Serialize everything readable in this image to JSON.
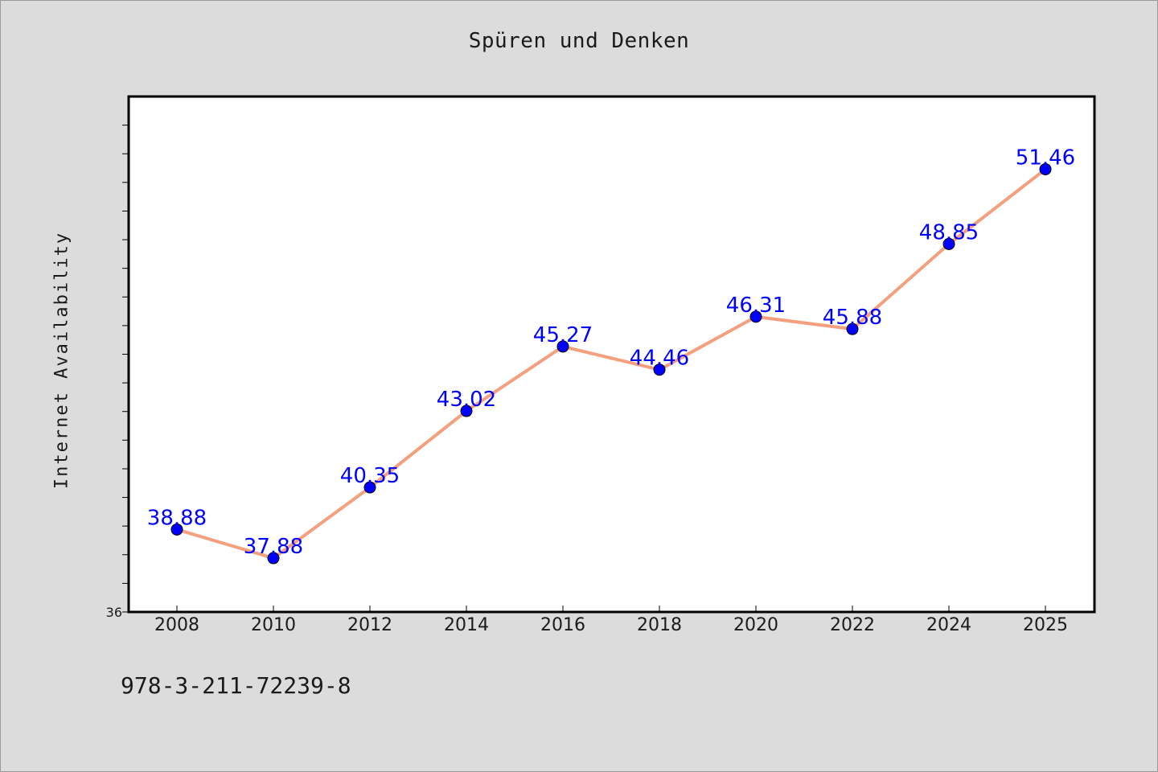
{
  "chart_data": {
    "type": "line",
    "title": "Spüren und Denken",
    "xlabel": "",
    "ylabel": "Internet Availability",
    "x": [
      "2008",
      "2010",
      "2012",
      "2014",
      "2016",
      "2018",
      "2020",
      "2022",
      "2024",
      "2025"
    ],
    "series": [
      {
        "values": [
          38.88,
          37.88,
          40.35,
          43.02,
          45.27,
          44.46,
          46.31,
          45.88,
          48.85,
          51.46
        ],
        "data_labels": [
          "38.88",
          "37.88",
          "40.35",
          "43.02",
          "45.27",
          "44.46",
          "46.31",
          "45.88",
          "48.85",
          "51.46"
        ],
        "line_color": "#f4a07e",
        "marker_color": "#0000ff"
      }
    ],
    "ylim": [
      36,
      54
    ],
    "y_tick_labels": [
      "36"
    ],
    "grid": false,
    "legend": "none",
    "background": "#dcdcdc",
    "plot_background": "#ffffff"
  },
  "footnote": "978-3-211-72239-8"
}
